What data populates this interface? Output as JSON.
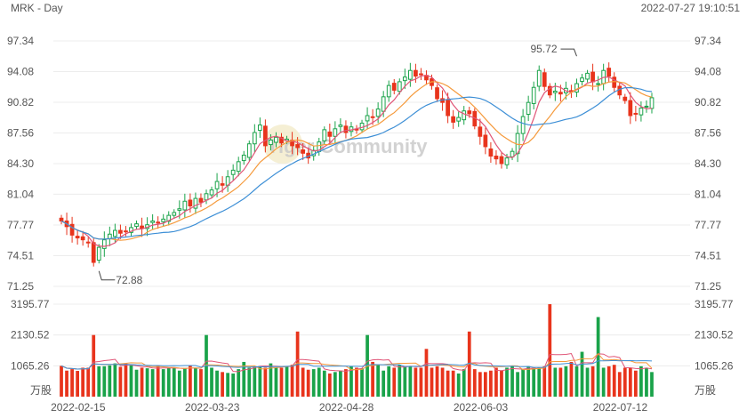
{
  "header": {
    "symbol_period": "MRK - Day",
    "timestamp": "2022-07-27 19:10:51"
  },
  "watermark": "Tiger Community",
  "chart_data": {
    "type": "candlestick",
    "price_axis": {
      "ticks": [
        97.34,
        94.08,
        90.82,
        87.56,
        84.3,
        81.04,
        77.77,
        74.51,
        71.25
      ],
      "tick_labels": [
        "97.34",
        "94.08",
        "90.82",
        "87.56",
        "84.30",
        "81.04",
        "77.77",
        "74.51",
        "71.25"
      ],
      "range": [
        71.25,
        97.34
      ]
    },
    "volume_axis": {
      "ticks": [
        3195.77,
        2130.52,
        1065.26
      ],
      "tick_labels": [
        "3195.77",
        "2130.52",
        "1065.26"
      ],
      "unit_label": "万股",
      "range": [
        0,
        3195.77
      ]
    },
    "x_axis": {
      "date_labels": [
        {
          "label": "2022-02-15",
          "index": 3
        },
        {
          "label": "2022-03-23",
          "index": 28
        },
        {
          "label": "2022-04-28",
          "index": 53
        },
        {
          "label": "2022-06-03",
          "index": 78
        },
        {
          "label": "2022-07-12",
          "index": 104
        }
      ]
    },
    "annotations": [
      {
        "text": "72.88",
        "index": 7,
        "value": 72.88,
        "kind": "low"
      },
      {
        "text": "95.72",
        "index": 96,
        "value": 95.72,
        "kind": "high"
      }
    ],
    "colors": {
      "up": "#1aa34a",
      "down": "#e8341c",
      "ma_short": "#e05577",
      "ma_mid": "#f59a3c",
      "ma_long": "#3d8fd6"
    },
    "close": [
      78.2,
      77.6,
      76.7,
      76.4,
      76.2,
      75.9,
      73.8,
      75.4,
      76.2,
      76.8,
      77.2,
      76.9,
      77.1,
      77.5,
      77.9,
      77.4,
      77.8,
      78.2,
      78.0,
      78.4,
      78.8,
      79.1,
      79.5,
      80.3,
      79.8,
      80.6,
      80.2,
      81.1,
      81.5,
      82.4,
      82.0,
      82.9,
      83.6,
      84.5,
      85.2,
      86.4,
      87.6,
      88.4,
      86.2,
      86.8,
      87.1,
      86.5,
      86.9,
      86.2,
      86.0,
      85.4,
      84.9,
      85.7,
      86.6,
      87.9,
      87.2,
      88.0,
      88.4,
      87.6,
      88.2,
      87.9,
      88.6,
      89.4,
      89.2,
      90.1,
      91.4,
      92.6,
      92.1,
      93.0,
      93.5,
      94.2,
      93.6,
      93.8,
      93.2,
      92.6,
      91.2,
      90.8,
      89.4,
      88.7,
      89.2,
      89.9,
      89.6,
      88.3,
      87.2,
      86.1,
      85.1,
      84.8,
      84.3,
      84.9,
      85.6,
      87.5,
      89.3,
      90.8,
      92.4,
      94.2,
      92.5,
      91.6,
      92.0,
      91.7,
      92.3,
      91.9,
      92.8,
      93.4,
      93.9,
      93.0,
      92.8,
      94.2,
      93.6,
      92.4,
      91.6,
      91.0,
      89.4,
      89.6,
      90.2,
      90.4,
      91.3
    ],
    "volume": [
      1065,
      900,
      950,
      890,
      1000,
      1000,
      2130,
      1050,
      1050,
      1080,
      1150,
      1030,
      1150,
      1080,
      930,
      1000,
      980,
      950,
      1060,
      950,
      1000,
      1000,
      900,
      990,
      1060,
      1000,
      950,
      2130,
      1000,
      900,
      850,
      820,
      800,
      950,
      1200,
      1000,
      1050,
      1050,
      1000,
      1150,
      1000,
      1000,
      1050,
      1100,
      2250,
      1000,
      930,
      950,
      1000,
      900,
      800,
      850,
      900,
      950,
      1050,
      1000,
      980,
      2130,
      1200,
      1100,
      900,
      1050,
      1000,
      1100,
      1050,
      1050,
      1000,
      1000,
      1650,
      1000,
      1050,
      1000,
      900,
      900,
      800,
      950,
      2250,
      950,
      850,
      850,
      900,
      1000,
      900,
      1000,
      1050,
      850,
      950,
      1050,
      1000,
      1000,
      1050,
      3195,
      1000,
      1000,
      1050,
      1200,
      1050,
      1550,
      1000,
      1050,
      2750,
      1000,
      1050,
      1100,
      850,
      1000,
      1000,
      900,
      1050,
      1000,
      850
    ]
  }
}
